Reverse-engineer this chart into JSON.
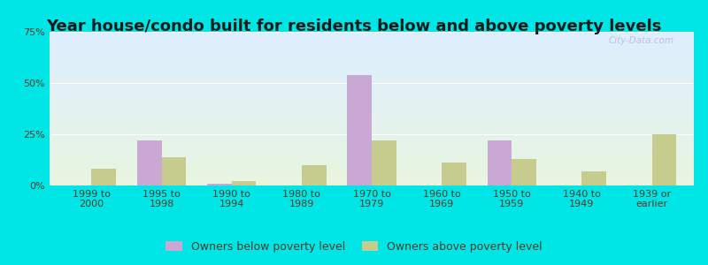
{
  "title": "Year house/condo built for residents below and above poverty levels",
  "categories": [
    "1999 to\n2000",
    "1995 to\n1998",
    "1990 to\n1994",
    "1980 to\n1989",
    "1970 to\n1979",
    "1960 to\n1969",
    "1950 to\n1959",
    "1940 to\n1949",
    "1939 or\nearlier"
  ],
  "below_poverty": [
    0,
    22,
    1,
    0,
    54,
    0,
    22,
    0,
    0
  ],
  "above_poverty": [
    8,
    14,
    2,
    10,
    22,
    11,
    13,
    7,
    25
  ],
  "below_color": "#c9a8d4",
  "above_color": "#c5cc8e",
  "ylim": [
    0,
    75
  ],
  "yticks": [
    0,
    25,
    50,
    75
  ],
  "ytick_labels": [
    "0%",
    "25%",
    "50%",
    "75%"
  ],
  "bg_color_top": "#ddeeff",
  "bg_color_bottom": "#e8f5e0",
  "outer_bg": "#00e5e5",
  "legend_below": "Owners below poverty level",
  "legend_above": "Owners above poverty level",
  "bar_width": 0.35,
  "title_fontsize": 13,
  "tick_fontsize": 8,
  "legend_fontsize": 9
}
